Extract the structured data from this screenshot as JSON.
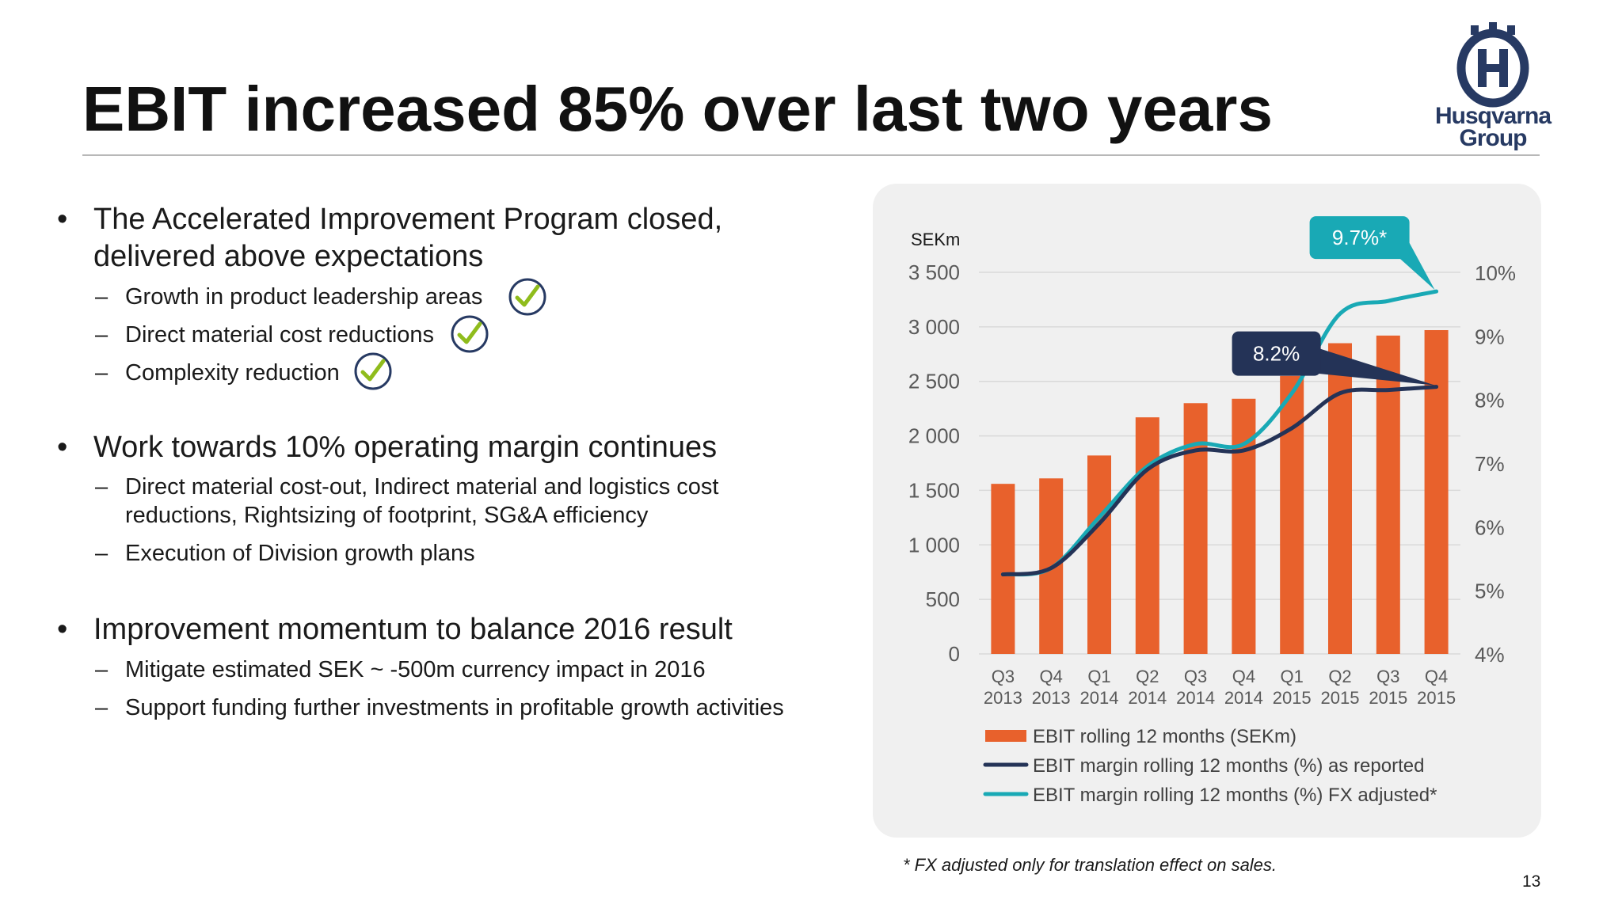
{
  "slide": {
    "title": "EBIT increased 85% over last two years",
    "page_number": "13",
    "footnote": "* FX adjusted only for translation effect on sales."
  },
  "logo": {
    "line1": "Husqvarna",
    "line2": "Group",
    "color": "#273a63"
  },
  "bullets": [
    {
      "text": "The Accelerated Improvement Program closed, delivered above expectations",
      "subs": [
        {
          "text": "Growth in product leadership areas",
          "checked": true
        },
        {
          "text": "Direct material cost reductions",
          "checked": true
        },
        {
          "text": "Complexity reduction",
          "checked": true
        }
      ]
    },
    {
      "text": "Work towards 10% operating margin continues",
      "subs": [
        {
          "text": "Direct material cost-out, Indirect material and logistics cost\nreductions, Rightsizing of footprint, SG&A efficiency",
          "checked": false
        },
        {
          "text": "Execution of Division growth plans",
          "checked": false
        }
      ]
    },
    {
      "text": "Improvement momentum to balance 2016 result",
      "subs": [
        {
          "text": "Mitigate estimated SEK ~ -500m currency impact in 2016",
          "checked": false
        },
        {
          "text": "Support funding further investments in profitable growth activities",
          "checked": false
        }
      ]
    }
  ],
  "chart_data": {
    "type": "bar",
    "title": "",
    "ylabel": "SEKm",
    "categories": [
      "Q3\n2013",
      "Q4\n2013",
      "Q1\n2014",
      "Q2\n2014",
      "Q3\n2014",
      "Q4\n2014",
      "Q1\n2015",
      "Q2\n2015",
      "Q3\n2015",
      "Q4\n2015"
    ],
    "left_axis": {
      "ylim": [
        0,
        3500
      ],
      "ticks": [
        0,
        500,
        1000,
        1500,
        2000,
        2500,
        3000,
        3500
      ],
      "tick_labels": [
        "0",
        "500",
        "1 000",
        "1 500",
        "2 000",
        "2 500",
        "3 000",
        "3 500"
      ]
    },
    "right_axis": {
      "ylim": [
        4,
        10
      ],
      "ticks": [
        4,
        5,
        6,
        7,
        8,
        9,
        10
      ],
      "tick_labels": [
        "4%",
        "5%",
        "6%",
        "7%",
        "8%",
        "9%",
        "10%"
      ]
    },
    "grid": true,
    "legend_position": "bottom",
    "series": [
      {
        "name": "EBIT rolling 12 months (SEKm)",
        "kind": "bar",
        "axis": "left",
        "color": "#e8612c",
        "values": [
          1560,
          1610,
          1820,
          2170,
          2300,
          2340,
          2550,
          2850,
          2920,
          2970
        ]
      },
      {
        "name": "EBIT margin rolling 12 months (%) as reported",
        "kind": "line",
        "axis": "right",
        "color": "#243357",
        "values": [
          5.25,
          5.35,
          6.05,
          6.9,
          7.2,
          7.2,
          7.55,
          8.1,
          8.15,
          8.2
        ]
      },
      {
        "name": "EBIT margin rolling 12 months (%) FX adjusted*",
        "kind": "line",
        "axis": "right",
        "color": "#19a9b5",
        "values": [
          5.25,
          5.35,
          6.15,
          6.95,
          7.3,
          7.3,
          8.1,
          9.35,
          9.55,
          9.7
        ]
      }
    ],
    "callouts": [
      {
        "label": "8.2%",
        "color": "#243357",
        "series": 1,
        "point": 9
      },
      {
        "label": "9.7%*",
        "color": "#19a9b5",
        "series": 2,
        "point": 9
      }
    ]
  }
}
